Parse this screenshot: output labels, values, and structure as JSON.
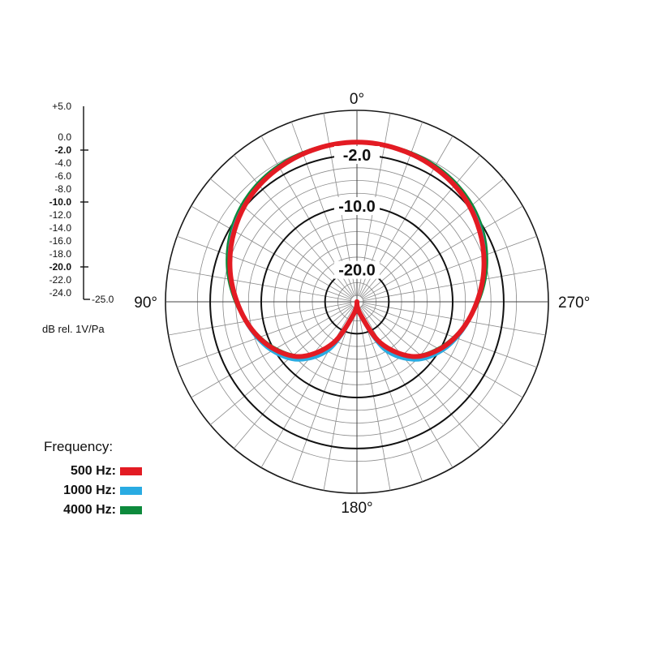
{
  "chart_data": {
    "type": "polar",
    "angle_labels": [
      {
        "angle": 0,
        "label": "0°"
      },
      {
        "angle": 90,
        "label": "90°"
      },
      {
        "angle": 180,
        "label": "180°"
      },
      {
        "angle": 270,
        "label": "270°"
      }
    ],
    "angle_direction": "counterclockwise from top",
    "radial_range": [
      -25.0,
      5.0
    ],
    "radial_tick_labels": [
      "+5.0",
      "0.0",
      "-2.0",
      "-4.0",
      "-6.0",
      "-8.0",
      "-10.0",
      "-12.0",
      "-14.0",
      "-16.0",
      "-18.0",
      "-20.0",
      "-22.0",
      "-24.0",
      "-25.0"
    ],
    "major_ticks": [
      "-2.0",
      "-10.0",
      "-20.0"
    ],
    "ring_labels": [
      "-2.0",
      "-10.0",
      "-20.0"
    ],
    "unit_label": "dB rel. 1V/Pa",
    "legend_title": "Frequency:",
    "legend_position": "bottom-left",
    "series": [
      {
        "name": "500 Hz:",
        "color": "#e31b23",
        "angles": [
          0,
          15,
          30,
          45,
          60,
          75,
          90,
          105,
          120,
          135,
          150,
          165,
          180,
          195,
          210,
          225,
          240,
          255,
          270,
          285,
          300,
          315,
          330,
          345
        ],
        "values": [
          0.0,
          -0.2,
          -0.7,
          -1.5,
          -2.8,
          -4.4,
          -6.2,
          -8.0,
          -10.1,
          -12.9,
          -17.5,
          -23.0,
          -25.0,
          -23.0,
          -17.5,
          -12.9,
          -10.1,
          -8.0,
          -6.2,
          -4.4,
          -2.8,
          -1.5,
          -0.7,
          -0.2
        ]
      },
      {
        "name": "1000 Hz:",
        "color": "#29abe2",
        "angles": [
          0,
          15,
          30,
          45,
          60,
          75,
          90,
          105,
          120,
          135,
          150,
          165,
          180,
          195,
          210,
          225,
          240,
          255,
          270,
          285,
          300,
          315,
          330,
          345
        ],
        "values": [
          0.0,
          -0.2,
          -0.6,
          -1.4,
          -2.6,
          -4.3,
          -6.2,
          -7.8,
          -9.6,
          -12.1,
          -16.3,
          -22.5,
          -25.0,
          -22.5,
          -16.3,
          -12.1,
          -9.6,
          -7.8,
          -6.2,
          -4.3,
          -2.6,
          -1.4,
          -0.6,
          -0.2
        ]
      },
      {
        "name": "4000 Hz:",
        "color": "#0d8a3c",
        "angles": [
          0,
          15,
          30,
          45,
          60,
          75,
          90,
          105,
          120,
          135,
          150,
          165,
          180,
          195,
          210,
          225,
          240,
          255,
          270,
          285,
          300,
          315,
          330,
          345
        ],
        "values": [
          0.0,
          -0.1,
          -0.4,
          -1.1,
          -2.3,
          -4.0,
          -6.0,
          -8.1,
          -10.3,
          -13.0,
          -17.5,
          -23.0,
          -25.0,
          -23.0,
          -17.5,
          -13.0,
          -10.3,
          -8.1,
          -6.0,
          -4.0,
          -2.3,
          -1.1,
          -0.4,
          -0.1
        ]
      }
    ]
  }
}
